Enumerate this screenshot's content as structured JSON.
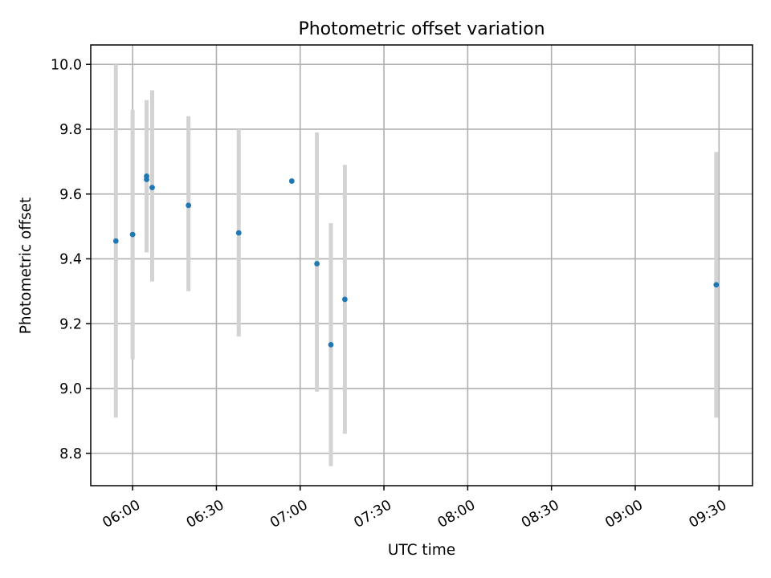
{
  "chart_data": {
    "type": "scatter",
    "title": "Photometric offset variation",
    "xlabel": "UTC time",
    "ylabel": "Photometric offset",
    "x_axis": {
      "kind": "time",
      "min": "05:45",
      "max": "09:42",
      "ticks": [
        "06:00",
        "06:30",
        "07:00",
        "07:30",
        "08:00",
        "08:30",
        "09:00",
        "09:30"
      ]
    },
    "y_axis": {
      "min": 8.7,
      "max": 10.06,
      "ticks": [
        "8.8",
        "9.0",
        "9.2",
        "9.4",
        "9.6",
        "9.8",
        "10.0"
      ]
    },
    "grid": true,
    "colors": {
      "points": "#1f77b4",
      "error_bars": "#d3d3d3",
      "grid": "#b0b0b0"
    },
    "points": [
      {
        "x": "05:54",
        "y": 9.455,
        "ylow": 8.91,
        "yhigh": 10.0
      },
      {
        "x": "06:00",
        "y": 9.475,
        "ylow": 9.09,
        "yhigh": 9.86
      },
      {
        "x": "06:05",
        "y": 9.655,
        "ylow": 9.42,
        "yhigh": 9.89
      },
      {
        "x": "06:05",
        "y": 9.645,
        "ylow": 9.42,
        "yhigh": 9.87
      },
      {
        "x": "06:07",
        "y": 9.62,
        "ylow": 9.33,
        "yhigh": 9.92
      },
      {
        "x": "06:20",
        "y": 9.565,
        "ylow": 9.3,
        "yhigh": 9.84
      },
      {
        "x": "06:38",
        "y": 9.48,
        "ylow": 9.16,
        "yhigh": 9.8
      },
      {
        "x": "06:57",
        "y": 9.64,
        "ylow": null,
        "yhigh": null
      },
      {
        "x": "07:06",
        "y": 9.385,
        "ylow": 8.99,
        "yhigh": 9.79
      },
      {
        "x": "07:11",
        "y": 9.135,
        "ylow": 8.76,
        "yhigh": 9.51
      },
      {
        "x": "07:16",
        "y": 9.275,
        "ylow": 8.86,
        "yhigh": 9.69
      },
      {
        "x": "09:29",
        "y": 9.32,
        "ylow": 8.91,
        "yhigh": 9.73
      }
    ]
  }
}
